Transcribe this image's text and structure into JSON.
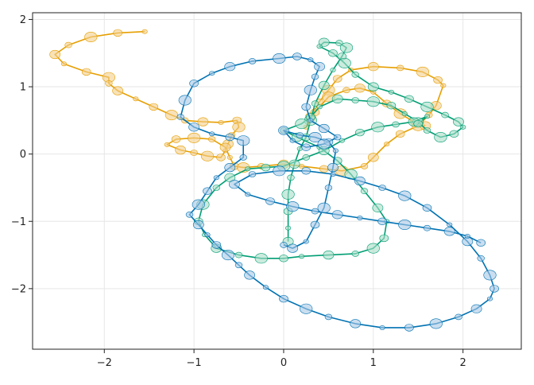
{
  "chart_data": {
    "type": "line",
    "title": "",
    "xlabel": "",
    "ylabel": "",
    "xlim": [
      -2.8,
      2.65
    ],
    "ylim": [
      -2.9,
      2.1
    ],
    "xticks": [
      -2,
      -1,
      0,
      1,
      2
    ],
    "yticks": [
      -2,
      -1,
      0,
      1,
      2
    ],
    "xtick_labels": [
      "−2",
      "−1",
      "0",
      "1",
      "2"
    ],
    "ytick_labels": [
      "−2",
      "−1",
      "0",
      "1",
      "2"
    ],
    "grid": true,
    "legend": "none",
    "markers": "translucent circles of varying size along each path",
    "series": [
      {
        "color": "#e69f00",
        "marker_fill": "#f3cf8a",
        "points": [
          [
            -1.55,
            1.82
          ],
          [
            -1.85,
            1.8
          ],
          [
            -2.15,
            1.74
          ],
          [
            -2.4,
            1.62
          ],
          [
            -2.55,
            1.48
          ],
          [
            -2.45,
            1.34
          ],
          [
            -2.2,
            1.22
          ],
          [
            -1.95,
            1.14
          ],
          [
            -1.95,
            1.05
          ],
          [
            -1.85,
            0.94
          ],
          [
            -1.65,
            0.82
          ],
          [
            -1.45,
            0.7
          ],
          [
            -1.25,
            0.58
          ],
          [
            -1.1,
            0.5
          ],
          [
            -0.9,
            0.48
          ],
          [
            -0.7,
            0.47
          ],
          [
            -0.52,
            0.5
          ],
          [
            -0.5,
            0.4
          ],
          [
            -0.58,
            0.28
          ],
          [
            -0.62,
            0.15
          ],
          [
            -0.65,
            0.05
          ],
          [
            -0.7,
            -0.05
          ],
          [
            -0.85,
            -0.03
          ],
          [
            -1.0,
            0.02
          ],
          [
            -1.15,
            0.06
          ],
          [
            -1.3,
            0.14
          ],
          [
            -1.2,
            0.22
          ],
          [
            -1.0,
            0.24
          ],
          [
            -0.8,
            0.22
          ],
          [
            -0.65,
            0.1
          ],
          [
            -0.6,
            -0.05
          ],
          [
            -0.55,
            -0.18
          ],
          [
            -0.45,
            -0.2
          ],
          [
            -0.25,
            -0.18
          ],
          [
            0.0,
            -0.15
          ],
          [
            0.2,
            -0.18
          ],
          [
            0.45,
            -0.22
          ],
          [
            0.65,
            -0.25
          ],
          [
            0.9,
            -0.18
          ],
          [
            1.0,
            -0.05
          ],
          [
            1.15,
            0.15
          ],
          [
            1.3,
            0.3
          ],
          [
            1.5,
            0.42
          ],
          [
            1.62,
            0.58
          ],
          [
            1.7,
            0.72
          ],
          [
            1.78,
            1.02
          ],
          [
            1.72,
            1.1
          ],
          [
            1.55,
            1.22
          ],
          [
            1.3,
            1.28
          ],
          [
            1.0,
            1.3
          ],
          [
            0.75,
            1.25
          ],
          [
            0.6,
            1.12
          ],
          [
            0.5,
            0.95
          ],
          [
            0.4,
            0.78
          ],
          [
            0.3,
            0.55
          ],
          [
            0.25,
            0.4
          ],
          [
            0.35,
            0.62
          ],
          [
            0.5,
            0.85
          ],
          [
            0.7,
            0.95
          ],
          [
            0.85,
            0.98
          ],
          [
            1.0,
            0.92
          ],
          [
            1.15,
            0.75
          ],
          [
            1.3,
            0.6
          ],
          [
            1.45,
            0.48
          ],
          [
            1.58,
            0.42
          ]
        ]
      },
      {
        "color": "#009e73",
        "marker_fill": "#a8ddc8",
        "points": [
          [
            0.05,
            -1.3
          ],
          [
            0.05,
            -1.1
          ],
          [
            0.05,
            -0.85
          ],
          [
            0.05,
            -0.6
          ],
          [
            0.08,
            -0.35
          ],
          [
            0.12,
            -0.15
          ],
          [
            0.18,
            0.08
          ],
          [
            0.25,
            0.25
          ],
          [
            0.3,
            0.5
          ],
          [
            0.35,
            0.75
          ],
          [
            0.45,
            1.02
          ],
          [
            0.55,
            1.25
          ],
          [
            0.65,
            1.45
          ],
          [
            0.7,
            1.58
          ],
          [
            0.62,
            1.65
          ],
          [
            0.45,
            1.66
          ],
          [
            0.4,
            1.6
          ],
          [
            0.55,
            1.5
          ],
          [
            0.68,
            1.35
          ],
          [
            0.8,
            1.18
          ],
          [
            1.0,
            1.0
          ],
          [
            1.2,
            0.92
          ],
          [
            1.4,
            0.82
          ],
          [
            1.6,
            0.7
          ],
          [
            1.8,
            0.58
          ],
          [
            1.95,
            0.48
          ],
          [
            2.0,
            0.4
          ],
          [
            1.9,
            0.3
          ],
          [
            1.75,
            0.25
          ],
          [
            1.6,
            0.35
          ],
          [
            1.5,
            0.48
          ],
          [
            1.35,
            0.6
          ],
          [
            1.2,
            0.72
          ],
          [
            1.0,
            0.78
          ],
          [
            0.8,
            0.8
          ],
          [
            0.6,
            0.82
          ],
          [
            0.4,
            0.7
          ],
          [
            0.3,
            0.55
          ],
          [
            0.2,
            0.45
          ],
          [
            0.0,
            0.35
          ],
          [
            0.15,
            0.25
          ],
          [
            0.4,
            0.1
          ],
          [
            0.6,
            -0.1
          ],
          [
            0.75,
            -0.3
          ],
          [
            0.9,
            -0.55
          ],
          [
            1.05,
            -0.8
          ],
          [
            1.15,
            -1.0
          ],
          [
            1.12,
            -1.25
          ],
          [
            1.0,
            -1.4
          ],
          [
            0.8,
            -1.48
          ],
          [
            0.5,
            -1.5
          ],
          [
            0.2,
            -1.52
          ],
          [
            0.0,
            -1.55
          ],
          [
            -0.25,
            -1.55
          ],
          [
            -0.5,
            -1.5
          ],
          [
            -0.75,
            -1.4
          ],
          [
            -0.88,
            -1.2
          ],
          [
            -0.95,
            -1.0
          ],
          [
            -0.9,
            -0.75
          ],
          [
            -0.75,
            -0.5
          ],
          [
            -0.6,
            -0.35
          ],
          [
            -0.4,
            -0.22
          ],
          [
            -0.2,
            -0.2
          ],
          [
            0.0,
            -0.18
          ],
          [
            0.25,
            -0.05
          ],
          [
            0.45,
            0.05
          ],
          [
            0.65,
            0.2
          ],
          [
            0.85,
            0.32
          ],
          [
            1.05,
            0.4
          ],
          [
            1.25,
            0.44
          ],
          [
            1.45,
            0.48
          ],
          [
            1.6,
            0.56
          ],
          [
            1.5,
            0.45
          ]
        ]
      },
      {
        "color": "#0072b2",
        "marker_fill": "#a6c8e6",
        "points": [
          [
            0.0,
            -1.35
          ],
          [
            0.1,
            -1.4
          ],
          [
            0.25,
            -1.3
          ],
          [
            0.35,
            -1.05
          ],
          [
            0.45,
            -0.8
          ],
          [
            0.5,
            -0.5
          ],
          [
            0.55,
            -0.2
          ],
          [
            0.58,
            0.05
          ],
          [
            0.5,
            0.18
          ],
          [
            0.35,
            0.25
          ],
          [
            0.18,
            0.28
          ],
          [
            0.0,
            0.35
          ],
          [
            0.1,
            0.2
          ],
          [
            0.25,
            0.1
          ],
          [
            0.45,
            0.15
          ],
          [
            0.6,
            0.25
          ],
          [
            0.45,
            0.38
          ],
          [
            0.3,
            0.5
          ],
          [
            0.25,
            0.7
          ],
          [
            0.3,
            0.95
          ],
          [
            0.35,
            1.15
          ],
          [
            0.4,
            1.3
          ],
          [
            0.3,
            1.4
          ],
          [
            0.15,
            1.45
          ],
          [
            -0.05,
            1.42
          ],
          [
            -0.35,
            1.38
          ],
          [
            -0.6,
            1.3
          ],
          [
            -0.8,
            1.2
          ],
          [
            -1.0,
            1.05
          ],
          [
            -1.1,
            0.8
          ],
          [
            -1.15,
            0.55
          ],
          [
            -1.0,
            0.4
          ],
          [
            -0.8,
            0.3
          ],
          [
            -0.6,
            0.25
          ],
          [
            -0.45,
            0.2
          ],
          [
            -0.45,
            -0.05
          ],
          [
            -0.6,
            -0.2
          ],
          [
            -0.75,
            -0.35
          ],
          [
            -0.85,
            -0.55
          ],
          [
            -0.95,
            -0.75
          ],
          [
            -1.05,
            -0.9
          ],
          [
            -0.95,
            -1.05
          ],
          [
            -0.85,
            -1.2
          ],
          [
            -0.75,
            -1.35
          ],
          [
            -0.62,
            -1.5
          ],
          [
            -0.5,
            -1.65
          ],
          [
            -0.38,
            -1.8
          ],
          [
            -0.2,
            -1.98
          ],
          [
            0.0,
            -2.15
          ],
          [
            0.25,
            -2.3
          ],
          [
            0.5,
            -2.42
          ],
          [
            0.8,
            -2.52
          ],
          [
            1.1,
            -2.58
          ],
          [
            1.4,
            -2.58
          ],
          [
            1.7,
            -2.52
          ],
          [
            1.95,
            -2.42
          ],
          [
            2.15,
            -2.3
          ],
          [
            2.3,
            -2.15
          ],
          [
            2.35,
            -2.0
          ],
          [
            2.3,
            -1.8
          ],
          [
            2.2,
            -1.55
          ],
          [
            2.05,
            -1.3
          ],
          [
            1.85,
            -1.05
          ],
          [
            1.6,
            -0.8
          ],
          [
            1.35,
            -0.62
          ],
          [
            1.1,
            -0.5
          ],
          [
            0.85,
            -0.4
          ],
          [
            0.55,
            -0.3
          ],
          [
            0.25,
            -0.25
          ],
          [
            -0.05,
            -0.25
          ],
          [
            -0.35,
            -0.3
          ],
          [
            -0.55,
            -0.45
          ],
          [
            -0.4,
            -0.6
          ],
          [
            -0.15,
            -0.7
          ],
          [
            0.1,
            -0.78
          ],
          [
            0.35,
            -0.85
          ],
          [
            0.6,
            -0.9
          ],
          [
            0.85,
            -0.95
          ],
          [
            1.1,
            -1.0
          ],
          [
            1.35,
            -1.05
          ],
          [
            1.6,
            -1.1
          ],
          [
            1.85,
            -1.15
          ],
          [
            2.05,
            -1.22
          ],
          [
            2.2,
            -1.32
          ]
        ]
      }
    ]
  }
}
